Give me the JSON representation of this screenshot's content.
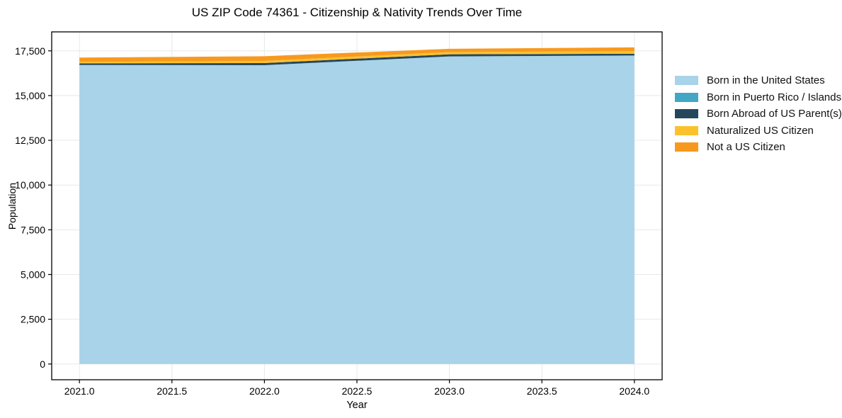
{
  "title": "US ZIP Code 74361 - Citizenship & Nativity Trends Over Time",
  "chart_data": {
    "type": "area",
    "stacked": true,
    "title": "US ZIP Code 74361 - Citizenship & Nativity Trends Over Time",
    "xlabel": "Year",
    "ylabel": "Population",
    "x": [
      2021,
      2022,
      2023,
      2024
    ],
    "series": [
      {
        "name": "Born in the United States",
        "color": "#a8d3e8",
        "values": [
          16710,
          16700,
          17190,
          17240
        ]
      },
      {
        "name": "Born in Puerto Rico / Islands",
        "color": "#41a7c4",
        "values": [
          0,
          0,
          0,
          0
        ]
      },
      {
        "name": "Born Abroad of US Parent(s)",
        "color": "#26465c",
        "values": [
          90,
          120,
          120,
          100
        ]
      },
      {
        "name": "Naturalized US Citizen",
        "color": "#fcc22d",
        "values": [
          85,
          115,
          120,
          140
        ]
      },
      {
        "name": "Not a US Citizen",
        "color": "#f8991f",
        "values": [
          240,
          265,
          185,
          215
        ]
      }
    ],
    "totals": [
      17125,
      17200,
      17615,
      17695
    ],
    "xlim": [
      2020.85,
      2024.15
    ],
    "ylim": [
      -880,
      18560
    ],
    "x_ticks": {
      "values": [
        2021,
        2021.5,
        2022,
        2022.5,
        2023,
        2023.5,
        2024
      ],
      "labels": [
        "2021.0",
        "2021.5",
        "2022.0",
        "2022.5",
        "2023.0",
        "2023.5",
        "2024.0"
      ]
    },
    "y_ticks": {
      "values": [
        0,
        2500,
        5000,
        7500,
        10000,
        12500,
        15000,
        17500
      ],
      "labels": [
        "0",
        "2,500",
        "5,000",
        "7,500",
        "10,000",
        "12,500",
        "15,000",
        "17,500"
      ]
    },
    "grid": true,
    "legend_position": "right"
  },
  "colors": {
    "background": "#ffffff",
    "grid": "#e8e8e8",
    "spine": "#000000",
    "tick_text": "#000000"
  }
}
